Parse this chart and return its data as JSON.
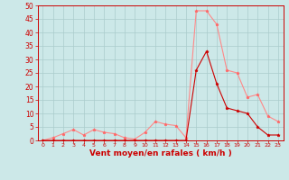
{
  "x": [
    0,
    1,
    2,
    3,
    4,
    5,
    6,
    7,
    8,
    9,
    10,
    11,
    12,
    13,
    14,
    15,
    16,
    17,
    18,
    19,
    20,
    21,
    22,
    23
  ],
  "rafales": [
    0,
    1,
    2.5,
    4,
    2,
    4,
    3,
    2.5,
    1,
    0.5,
    3,
    7,
    6,
    5.5,
    1,
    48,
    48,
    43,
    26,
    25,
    16,
    17,
    9,
    7
  ],
  "moyen": [
    0,
    0,
    0,
    0,
    0,
    0,
    0,
    0,
    0,
    0,
    0,
    0,
    0,
    0,
    0,
    26,
    33,
    21,
    12,
    11,
    10,
    5,
    2,
    2
  ],
  "bg_color": "#cce8e8",
  "grid_color": "#aacccc",
  "line_rafales_color": "#ff8888",
  "line_moyen_color": "#cc0000",
  "marker_rafales_color": "#ff6666",
  "marker_moyen_color": "#cc0000",
  "xlabel": "Vent moyen/en rafales ( km/h )",
  "xlabel_color": "#cc0000",
  "tick_color": "#cc0000",
  "spine_color": "#cc0000",
  "ylim": [
    0,
    50
  ],
  "yticks": [
    0,
    5,
    10,
    15,
    20,
    25,
    30,
    35,
    40,
    45,
    50
  ],
  "xlim": [
    -0.5,
    23.5
  ],
  "ytick_fontsize": 5.5,
  "xtick_fontsize": 4.5,
  "xlabel_fontsize": 6.5,
  "linewidth": 0.8,
  "markersize": 2.5
}
